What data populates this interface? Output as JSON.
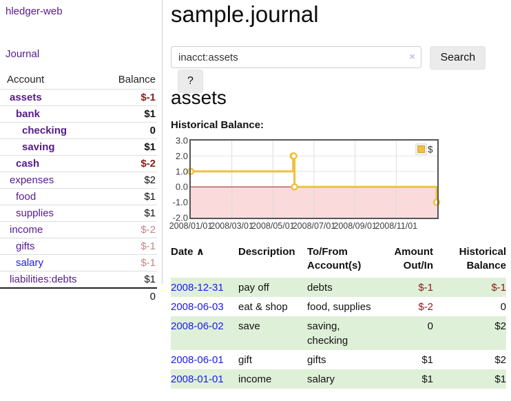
{
  "app": {
    "brand": "hledger-web"
  },
  "nav": {
    "journal": "Journal"
  },
  "colors": {
    "link_purple": "#551a8b",
    "link_blue": "#1a1ae6",
    "negative_strong": "#8b1a1a",
    "negative_faded": "#c28585",
    "row_shaded_green": "#dff0d8",
    "series_yellow": "#edc240",
    "negative_region_pink": "#fadada",
    "zero_line_red": "#8b2121",
    "chart_border_gray": "#545454"
  },
  "sidebar": {
    "headers": {
      "account": "Account",
      "balance": "Balance"
    },
    "accounts": [
      {
        "name": "assets",
        "balance": "$-1",
        "depth": 0,
        "bold": true,
        "balance_style": "neg",
        "link_style": "purple"
      },
      {
        "name": "bank",
        "balance": "$1",
        "depth": 1,
        "bold": true,
        "balance_style": "pos",
        "link_style": "purple"
      },
      {
        "name": "checking",
        "balance": "0",
        "depth": 2,
        "bold": true,
        "balance_style": "pos",
        "link_style": "purple"
      },
      {
        "name": "saving",
        "balance": "$1",
        "depth": 2,
        "bold": true,
        "balance_style": "pos",
        "link_style": "purple"
      },
      {
        "name": "cash",
        "balance": "$-2",
        "depth": 1,
        "bold": true,
        "balance_style": "neg",
        "link_style": "purple"
      },
      {
        "name": "expenses",
        "balance": "$2",
        "depth": 0,
        "bold": false,
        "balance_style": "pos",
        "link_style": "purple"
      },
      {
        "name": "food",
        "balance": "$1",
        "depth": 1,
        "bold": false,
        "balance_style": "pos",
        "link_style": "purple"
      },
      {
        "name": "supplies",
        "balance": "$1",
        "depth": 1,
        "bold": false,
        "balance_style": "pos",
        "link_style": "purple"
      },
      {
        "name": "income",
        "balance": "$-2",
        "depth": 0,
        "bold": false,
        "balance_style": "neg-faded",
        "link_style": "purple"
      },
      {
        "name": "gifts",
        "balance": "$-1",
        "depth": 1,
        "bold": false,
        "balance_style": "neg-faded",
        "link_style": "purple"
      },
      {
        "name": "salary",
        "balance": "$-1",
        "depth": 1,
        "bold": false,
        "balance_style": "neg-faded",
        "link_style": "blue"
      },
      {
        "name": "liabilities:debts",
        "balance": "$1",
        "depth": 0,
        "bold": false,
        "balance_style": "pos",
        "link_style": "purple"
      }
    ],
    "total": "0"
  },
  "main": {
    "title": "sample.journal",
    "search": {
      "value": "inacct:assets",
      "clear_icon": "×",
      "search_label": "Search",
      "help_label": "?"
    },
    "account_heading": "assets",
    "chart_label": "Historical Balance:"
  },
  "chart_data": {
    "type": "line",
    "title": "Historical Balance",
    "step": true,
    "series": [
      {
        "name": "$",
        "color": "#edc240",
        "points": [
          {
            "x": "2008-01-01",
            "y": 1
          },
          {
            "x": "2008-06-01",
            "y": 2
          },
          {
            "x": "2008-06-02",
            "y": 2
          },
          {
            "x": "2008-06-03",
            "y": 0
          },
          {
            "x": "2008-12-31",
            "y": -1
          }
        ]
      }
    ],
    "x_range": [
      "2008-01-01",
      "2009-01-01"
    ],
    "y_range": [
      -2,
      3
    ],
    "y_ticks": [
      {
        "label": "3.0",
        "value": 3
      },
      {
        "label": "2.0",
        "value": 2
      },
      {
        "label": "1.0",
        "value": 1
      },
      {
        "label": "0.0",
        "value": 0
      },
      {
        "label": "-1.0",
        "value": -1
      },
      {
        "label": "-2.0",
        "value": -2
      }
    ],
    "x_ticks": [
      "2008/01/01",
      "2008/03/01",
      "2008/05/01",
      "2008/07/01",
      "2008/09/01",
      "2008/11/01"
    ],
    "grid": true,
    "legend": {
      "label": "$",
      "position": "top-right"
    },
    "negative_region_color": "#fadada",
    "zero_line_color": "#8b2121"
  },
  "register": {
    "headers": [
      {
        "line1": "Date",
        "sort": "∧"
      },
      {
        "line1": "Description"
      },
      {
        "line1": "To/From",
        "line2": "Account(s)"
      },
      {
        "line1": "Amount",
        "line2": "Out/In",
        "align": "right"
      },
      {
        "line1": "Historical",
        "line2": "Balance",
        "align": "right"
      }
    ],
    "rows": [
      {
        "date": "2008-12-31",
        "description": "pay off",
        "accounts": "debts",
        "amount": "$-1",
        "balance": "$-1",
        "shaded": true
      },
      {
        "date": "2008-06-03",
        "description": "eat & shop",
        "accounts": "food, supplies",
        "amount": "$-2",
        "balance": "0",
        "shaded": false
      },
      {
        "date": "2008-06-02",
        "description": "save",
        "accounts": "saving, checking",
        "amount": "0",
        "balance": "$2",
        "shaded": true
      },
      {
        "date": "2008-06-01",
        "description": "gift",
        "accounts": "gifts",
        "amount": "$1",
        "balance": "$2",
        "shaded": false
      },
      {
        "date": "2008-01-01",
        "description": "income",
        "accounts": "salary",
        "amount": "$1",
        "balance": "$1",
        "shaded": true
      }
    ]
  }
}
